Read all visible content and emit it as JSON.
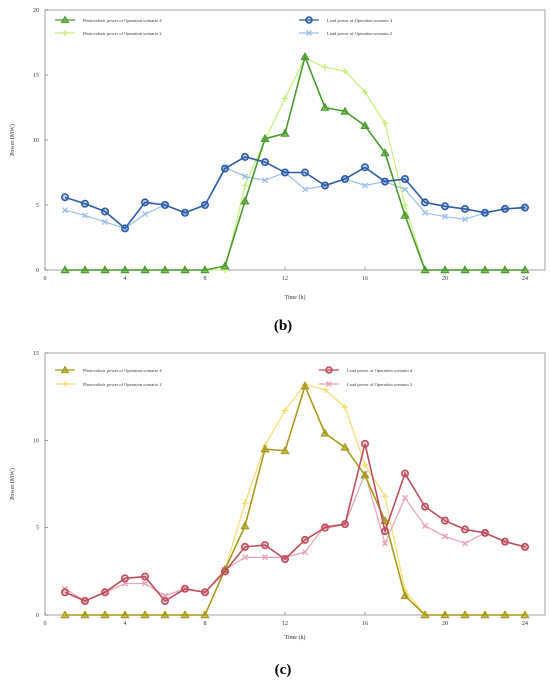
{
  "chart_data": [
    {
      "type": "line",
      "panel_label": "(b)",
      "xlabel": "Time (h)",
      "ylabel": "Power (MW)",
      "xlim": [
        0,
        25
      ],
      "ylim": [
        0,
        20
      ],
      "xticks": [
        0,
        4,
        8,
        12,
        16,
        20,
        24
      ],
      "yticks": [
        0,
        5,
        10,
        15,
        20
      ],
      "grid": false,
      "x": [
        1,
        2,
        3,
        4,
        5,
        6,
        7,
        8,
        9,
        10,
        11,
        12,
        13,
        14,
        15,
        16,
        17,
        18,
        19,
        20,
        21,
        22,
        23,
        24
      ],
      "series": [
        {
          "name": "Photovoltaic power of Operation scenario 4",
          "color": "#4a9a2e",
          "marker": "triangle",
          "values": [
            0,
            0,
            0,
            0,
            0,
            0,
            0,
            0,
            0.3,
            5.3,
            10.1,
            10.5,
            16.4,
            12.5,
            12.2,
            11.1,
            9.0,
            4.2,
            0,
            0,
            0,
            0,
            0,
            0
          ]
        },
        {
          "name": "Load power of Operation scenario 4",
          "color": "#2d5ca8",
          "marker": "circle",
          "values": [
            5.6,
            5.1,
            4.5,
            3.2,
            5.2,
            5.0,
            4.4,
            5.0,
            7.8,
            8.7,
            8.3,
            7.5,
            7.5,
            6.5,
            7.0,
            7.9,
            6.8,
            7.0,
            5.2,
            4.9,
            4.7,
            4.4,
            4.7,
            4.8
          ]
        },
        {
          "name": "Photovoltaic power of Operation scenario 2",
          "color": "#c6ef7a",
          "marker": "plus",
          "values": [
            0,
            0,
            0,
            0,
            0,
            0,
            0,
            0,
            0,
            6.5,
            10.0,
            13.2,
            16.3,
            15.6,
            15.3,
            13.7,
            11.3,
            5.0,
            0,
            0,
            0,
            0,
            0,
            0
          ]
        },
        {
          "name": "Load power of Operation scenario 2",
          "color": "#9dbeea",
          "marker": "x",
          "values": [
            4.6,
            4.2,
            3.7,
            3.2,
            4.3,
            5.0,
            4.4,
            5.0,
            7.9,
            7.2,
            6.9,
            7.5,
            6.2,
            6.5,
            7.0,
            6.5,
            6.8,
            6.2,
            4.4,
            4.1,
            3.9,
            4.4,
            4.7,
            4.8
          ]
        }
      ]
    },
    {
      "type": "line",
      "panel_label": "(c)",
      "xlabel": "Time (h)",
      "ylabel": "Power (MW)",
      "xlim": [
        0,
        25
      ],
      "ylim": [
        0,
        15
      ],
      "xticks": [
        0,
        4,
        8,
        12,
        16,
        20,
        24
      ],
      "yticks": [
        0,
        5,
        10,
        15
      ],
      "grid": false,
      "x": [
        1,
        2,
        3,
        4,
        5,
        6,
        7,
        8,
        9,
        10,
        11,
        12,
        13,
        14,
        15,
        16,
        17,
        18,
        19,
        20,
        21,
        22,
        23,
        24
      ],
      "series": [
        {
          "name": "Photovoltaic power of Operation scenario 4",
          "color": "#a89a1c",
          "marker": "triangle",
          "values": [
            0,
            0,
            0,
            0,
            0,
            0,
            0,
            0,
            2.6,
            5.1,
            9.5,
            9.4,
            13.1,
            10.4,
            9.6,
            8.0,
            5.4,
            1.1,
            0,
            0,
            0,
            0,
            0,
            0
          ]
        },
        {
          "name": "Load power of Operation scenario 4",
          "color": "#bf4d5e",
          "marker": "circle",
          "values": [
            1.3,
            0.8,
            1.3,
            2.1,
            2.2,
            0.8,
            1.5,
            1.3,
            2.5,
            3.9,
            4.0,
            3.2,
            4.3,
            5.0,
            5.2,
            9.8,
            4.8,
            8.1,
            6.2,
            5.4,
            4.9,
            4.7,
            4.2,
            3.9
          ]
        },
        {
          "name": "Photovoltaic power of Operation scenario 2",
          "color": "#f5dc6e",
          "marker": "plus",
          "values": [
            0,
            0,
            0,
            0,
            0,
            0,
            0,
            0,
            2.6,
            6.4,
            9.7,
            11.7,
            13.2,
            12.9,
            11.9,
            8.6,
            6.8,
            1.4,
            0,
            0,
            0,
            0,
            0,
            0
          ]
        },
        {
          "name": "Load power of Operation scenario 2",
          "color": "#e6a3b4",
          "marker": "x",
          "values": [
            1.5,
            0.8,
            1.3,
            1.8,
            1.8,
            1.1,
            1.5,
            1.3,
            2.6,
            3.3,
            3.3,
            3.3,
            3.6,
            5.1,
            5.2,
            8.1,
            4.1,
            6.7,
            5.1,
            4.5,
            4.1,
            4.7,
            4.2,
            3.9
          ]
        }
      ]
    }
  ]
}
